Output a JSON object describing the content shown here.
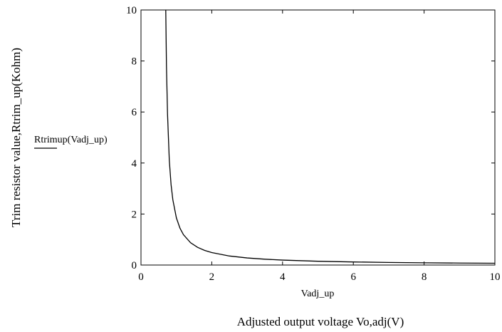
{
  "chart_data": {
    "type": "line",
    "title": "",
    "xlabel": "Adjusted output voltage Vo,adj(V)",
    "ylabel": "Trim resistor value,Rtrim_up(Kohm)",
    "x_trace_label": "Vadj_up",
    "y_trace_label": "Rtrimup(Vadj_up)",
    "xlim": [
      0,
      10
    ],
    "ylim": [
      0,
      10
    ],
    "xticks": [
      "0",
      "2",
      "4",
      "6",
      "8",
      "10"
    ],
    "yticks": [
      "0",
      "2",
      "4",
      "6",
      "8",
      "10"
    ],
    "grid": false,
    "series": [
      {
        "color": "#000000",
        "x": [
          0.7,
          0.72,
          0.75,
          0.8,
          0.85,
          0.9,
          1.0,
          1.1,
          1.2,
          1.4,
          1.6,
          1.8,
          2.0,
          2.5,
          3.0,
          3.5,
          4.0,
          5.0,
          6.0,
          7.0,
          8.0,
          9.0,
          10.0
        ],
        "y": [
          10.0,
          7.79,
          5.91,
          4.11,
          3.15,
          2.56,
          1.85,
          1.45,
          1.19,
          0.875,
          0.692,
          0.573,
          0.488,
          0.354,
          0.278,
          0.229,
          0.194,
          0.149,
          0.121,
          0.102,
          0.088,
          0.077,
          0.069
        ]
      }
    ]
  }
}
